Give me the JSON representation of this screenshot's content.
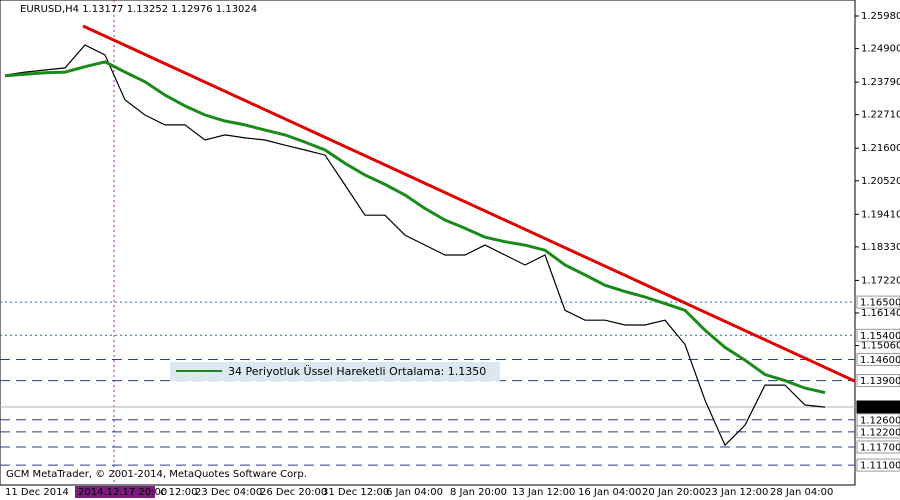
{
  "chart_data": {
    "type": "line",
    "title": "EURUSD,H4  1.13177 1.13252 1.12976 1.13024",
    "footer": "GCM MetaTrader, © 2001-2014, MetaQuotes Software Corp.",
    "annotation": "34 Periyotluk Üssel Hareketli Ortalama: 1.1350",
    "x_labels": [
      "11 Dec 2014",
      "2014.12.17 20:00",
      "c 12:00",
      "23 Dec 04:00",
      "26 Dec 20:00",
      "31 Dec 12:00",
      "6 Jan 04:00",
      "8 Jan 20:00",
      "13 Jan 12:00",
      "16 Jan 04:00",
      "20 Jan 20:00",
      "23 Jan 12:00",
      "28 Jan 04:00"
    ],
    "ylim": [
      1.1044,
      1.2651
    ],
    "yticks": [
      {
        "value": 1.2598,
        "label": "1.25980"
      },
      {
        "value": 1.249,
        "label": "1.24900"
      },
      {
        "value": 1.2379,
        "label": "1.23790"
      },
      {
        "value": 1.2271,
        "label": "1.22710"
      },
      {
        "value": 1.216,
        "label": "1.21600"
      },
      {
        "value": 1.2052,
        "label": "1.20520"
      },
      {
        "value": 1.1941,
        "label": "1.19410"
      },
      {
        "value": 1.1833,
        "label": "1.18330"
      },
      {
        "value": 1.1722,
        "label": "1.17220"
      },
      {
        "value": 1.1614,
        "label": "1.16140"
      },
      {
        "value": 1.1506,
        "label": "1.15060"
      }
    ],
    "levels": [
      {
        "value": 1.165,
        "label": "1.16500",
        "color": "#3060c0",
        "dash": "2,3"
      },
      {
        "value": 1.154,
        "label": "1.15400",
        "color": "#3060c0",
        "dash": "2,3"
      },
      {
        "value": 1.146,
        "label": "1.14600",
        "color": "#2a3f8f",
        "dash": "10,6"
      },
      {
        "value": 1.139,
        "label": "1.13900",
        "color": "#2a3f8f",
        "dash": "10,6"
      },
      {
        "value": 1.13024,
        "label": "1.13024",
        "color": "#b0b0b0",
        "dash": "none",
        "current": true
      },
      {
        "value": 1.126,
        "label": "1.12600",
        "color": "#2a3f8f",
        "dash": "10,6"
      },
      {
        "value": 1.122,
        "label": "1.12200",
        "color": "#2a3f8f",
        "dash": "10,6"
      },
      {
        "value": 1.117,
        "label": "1.11700",
        "color": "#2a3f8f",
        "dash": "10,6"
      },
      {
        "value": 1.111,
        "label": "1.11100",
        "color": "#2a3f8f",
        "dash": "10,6"
      }
    ],
    "trendline": {
      "color": "#e00000",
      "start": 1.2565,
      "end": 1.1388
    },
    "series": [
      {
        "name": "EURUSD",
        "color": "#000000",
        "values": [
          1.2402,
          1.2412,
          1.2419,
          1.2426,
          1.2502,
          1.2469,
          1.232,
          1.227,
          1.2237,
          1.2237,
          1.2187,
          1.2204,
          1.2194,
          1.2187,
          1.217,
          1.2154,
          1.2137,
          1.2038,
          1.1938,
          1.1938,
          1.1872,
          1.1839,
          1.1806,
          1.1806,
          1.1839,
          1.1806,
          1.1773,
          1.1806,
          1.1623,
          1.159,
          1.159,
          1.1574,
          1.1574,
          1.159,
          1.151,
          1.1325,
          1.1176,
          1.1242,
          1.1375,
          1.1375,
          1.1309,
          1.1302
        ]
      },
      {
        "name": "EMA 34",
        "color": "#1a8a1a",
        "values": [
          1.24,
          1.2405,
          1.241,
          1.2412,
          1.243,
          1.2446,
          1.2412,
          1.238,
          1.2336,
          1.23,
          1.227,
          1.225,
          1.2237,
          1.222,
          1.2204,
          1.218,
          1.2154,
          1.211,
          1.2071,
          1.204,
          1.2005,
          1.196,
          1.1922,
          1.1895,
          1.1865,
          1.185,
          1.1839,
          1.1822,
          1.1773,
          1.174,
          1.1706,
          1.1685,
          1.1667,
          1.1645,
          1.1623,
          1.1557,
          1.15,
          1.1458,
          1.141,
          1.139,
          1.1365,
          1.135
        ]
      }
    ]
  }
}
